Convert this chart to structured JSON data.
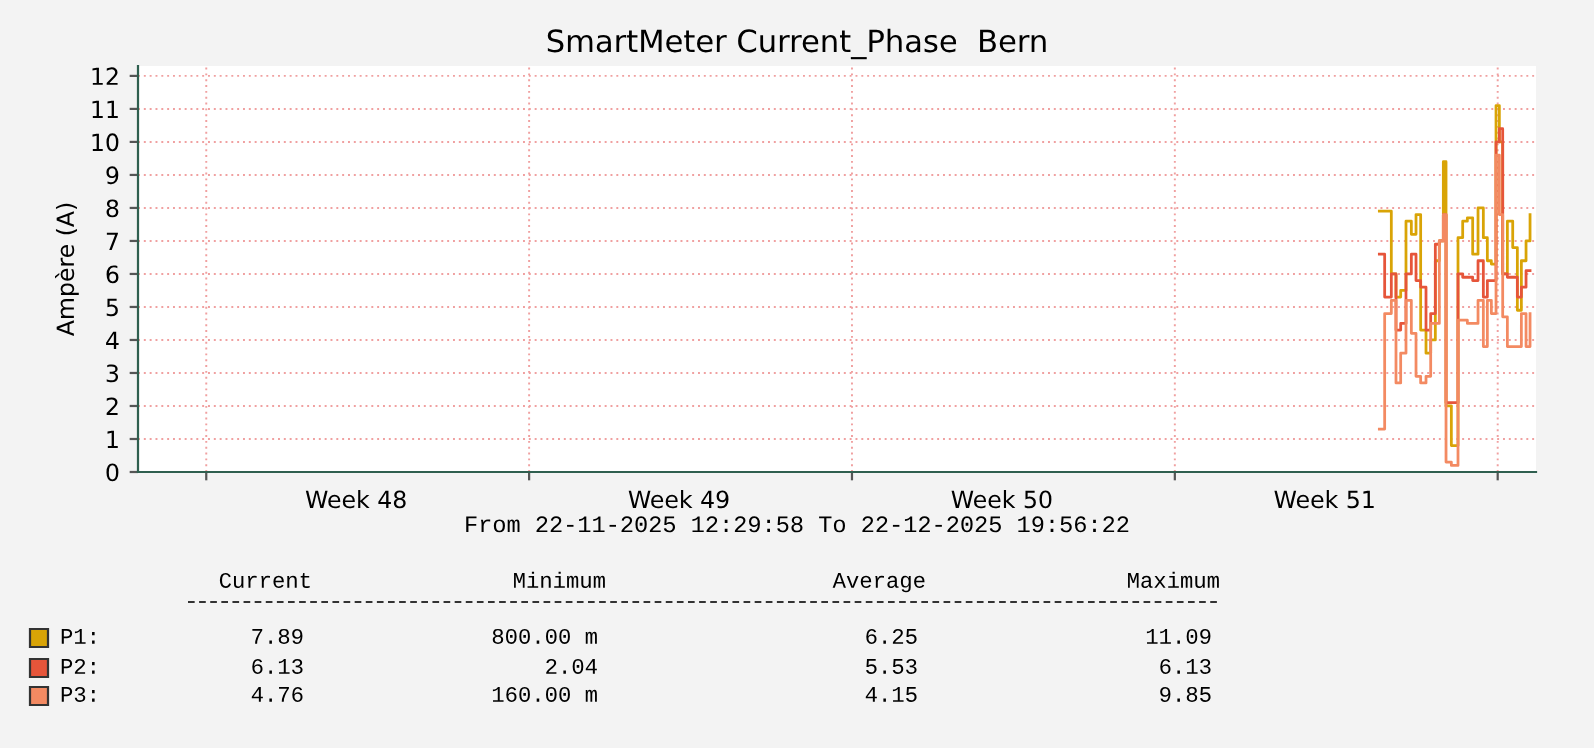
{
  "chart_data": {
    "type": "step",
    "title": "SmartMeter Current_Phase  Bern",
    "ylabel": "Ampère (A)",
    "xlim": [
      "2025-11-22T12:29",
      "2025-12-22T19:56"
    ],
    "xticks": [
      {
        "value": "2025-11-24T00:00",
        "label": null
      },
      {
        "value": "2025-11-27T06:00",
        "label": "Week 48"
      },
      {
        "value": "2025-12-01T00:00",
        "label": null
      },
      {
        "value": "2025-12-04T06:00",
        "label": "Week 49"
      },
      {
        "value": "2025-12-08T00:00",
        "label": null
      },
      {
        "value": "2025-12-11T06:00",
        "label": "Week 50"
      },
      {
        "value": "2025-12-15T00:00",
        "label": null
      },
      {
        "value": "2025-12-18T06:00",
        "label": "Week 51"
      },
      {
        "value": "2025-12-22T00:00",
        "label": null
      }
    ],
    "ylim": [
      0,
      12.3
    ],
    "yticks": [
      0,
      1,
      2,
      3,
      4,
      5,
      6,
      7,
      8,
      9,
      10,
      11,
      12
    ],
    "grid": true,
    "legend": "bottom",
    "x": [
      "2025-12-19T10:25",
      "2025-12-19T13:11",
      "2025-12-19T16:39",
      "2025-12-19T19:05",
      "2025-12-19T21:31",
      "2025-12-20T00:17",
      "2025-12-20T03:04",
      "2025-12-20T05:30",
      "2025-12-20T07:55",
      "2025-12-20T10:42",
      "2025-12-20T13:08",
      "2025-12-20T15:33",
      "2025-12-20T17:38",
      "2025-12-20T19:43",
      "2025-12-20T21:07",
      "2025-12-20T23:53",
      "2025-12-21T02:19",
      "2025-12-21T03:21",
      "2025-12-21T05:47",
      "2025-12-21T08:13",
      "2025-12-21T10:59",
      "2025-12-21T13:46",
      "2025-12-21T16:32",
      "2025-12-21T18:37",
      "2025-12-21T20:42",
      "2025-12-21T23:08",
      "2025-12-22T00:52",
      "2025-12-22T02:36",
      "2025-12-22T05:02",
      "2025-12-22T07:49",
      "2025-12-22T10:14",
      "2025-12-22T12:19",
      "2025-12-22T14:45",
      "2025-12-22T16:50"
    ],
    "series": [
      {
        "name": "P1:",
        "color": "#d9a406",
        "values": [
          7.9,
          7.9,
          6.0,
          5.3,
          5.5,
          7.6,
          7.2,
          7.8,
          4.3,
          3.6,
          4.0,
          6.4,
          7.0,
          9.4,
          2.0,
          0.8,
          0.8,
          7.1,
          7.6,
          7.7,
          6.6,
          8.0,
          7.1,
          6.4,
          6.3,
          11.1,
          10.0,
          6.0,
          7.6,
          6.8,
          4.9,
          6.4,
          7.0,
          7.8
        ]
      },
      {
        "name": "P2:",
        "color": "#e6553a",
        "values": [
          6.6,
          5.3,
          6.0,
          4.3,
          4.5,
          6.0,
          6.6,
          5.8,
          5.6,
          4.3,
          4.8,
          6.9,
          7.0,
          7.8,
          2.1,
          2.1,
          2.1,
          6.0,
          5.9,
          5.9,
          5.8,
          6.4,
          5.3,
          5.8,
          5.8,
          10.0,
          10.4,
          6.0,
          5.9,
          5.9,
          5.3,
          5.6,
          6.1,
          6.1
        ]
      },
      {
        "name": "P3:",
        "color": "#f38a62",
        "values": [
          1.3,
          4.8,
          5.2,
          2.7,
          3.6,
          5.2,
          4.2,
          2.9,
          2.7,
          2.9,
          4.5,
          4.5,
          7.0,
          7.8,
          0.3,
          0.2,
          0.2,
          4.6,
          4.6,
          4.5,
          4.5,
          5.2,
          3.8,
          5.2,
          4.8,
          9.6,
          7.8,
          4.7,
          3.8,
          3.8,
          3.8,
          4.8,
          3.8,
          4.8
        ]
      }
    ],
    "annotations": [
      "From 22-11-2025 12:29:58 To 22-12-2025 19:56:22",
      "Current",
      "Minimum",
      "Average",
      "Maximum",
      "7.89",
      "800.00 m",
      "6.25",
      "11.09",
      "6.13",
      "2.04",
      "5.53",
      "6.13",
      "4.76",
      "160.00 m",
      "4.15",
      "9.85"
    ]
  }
}
